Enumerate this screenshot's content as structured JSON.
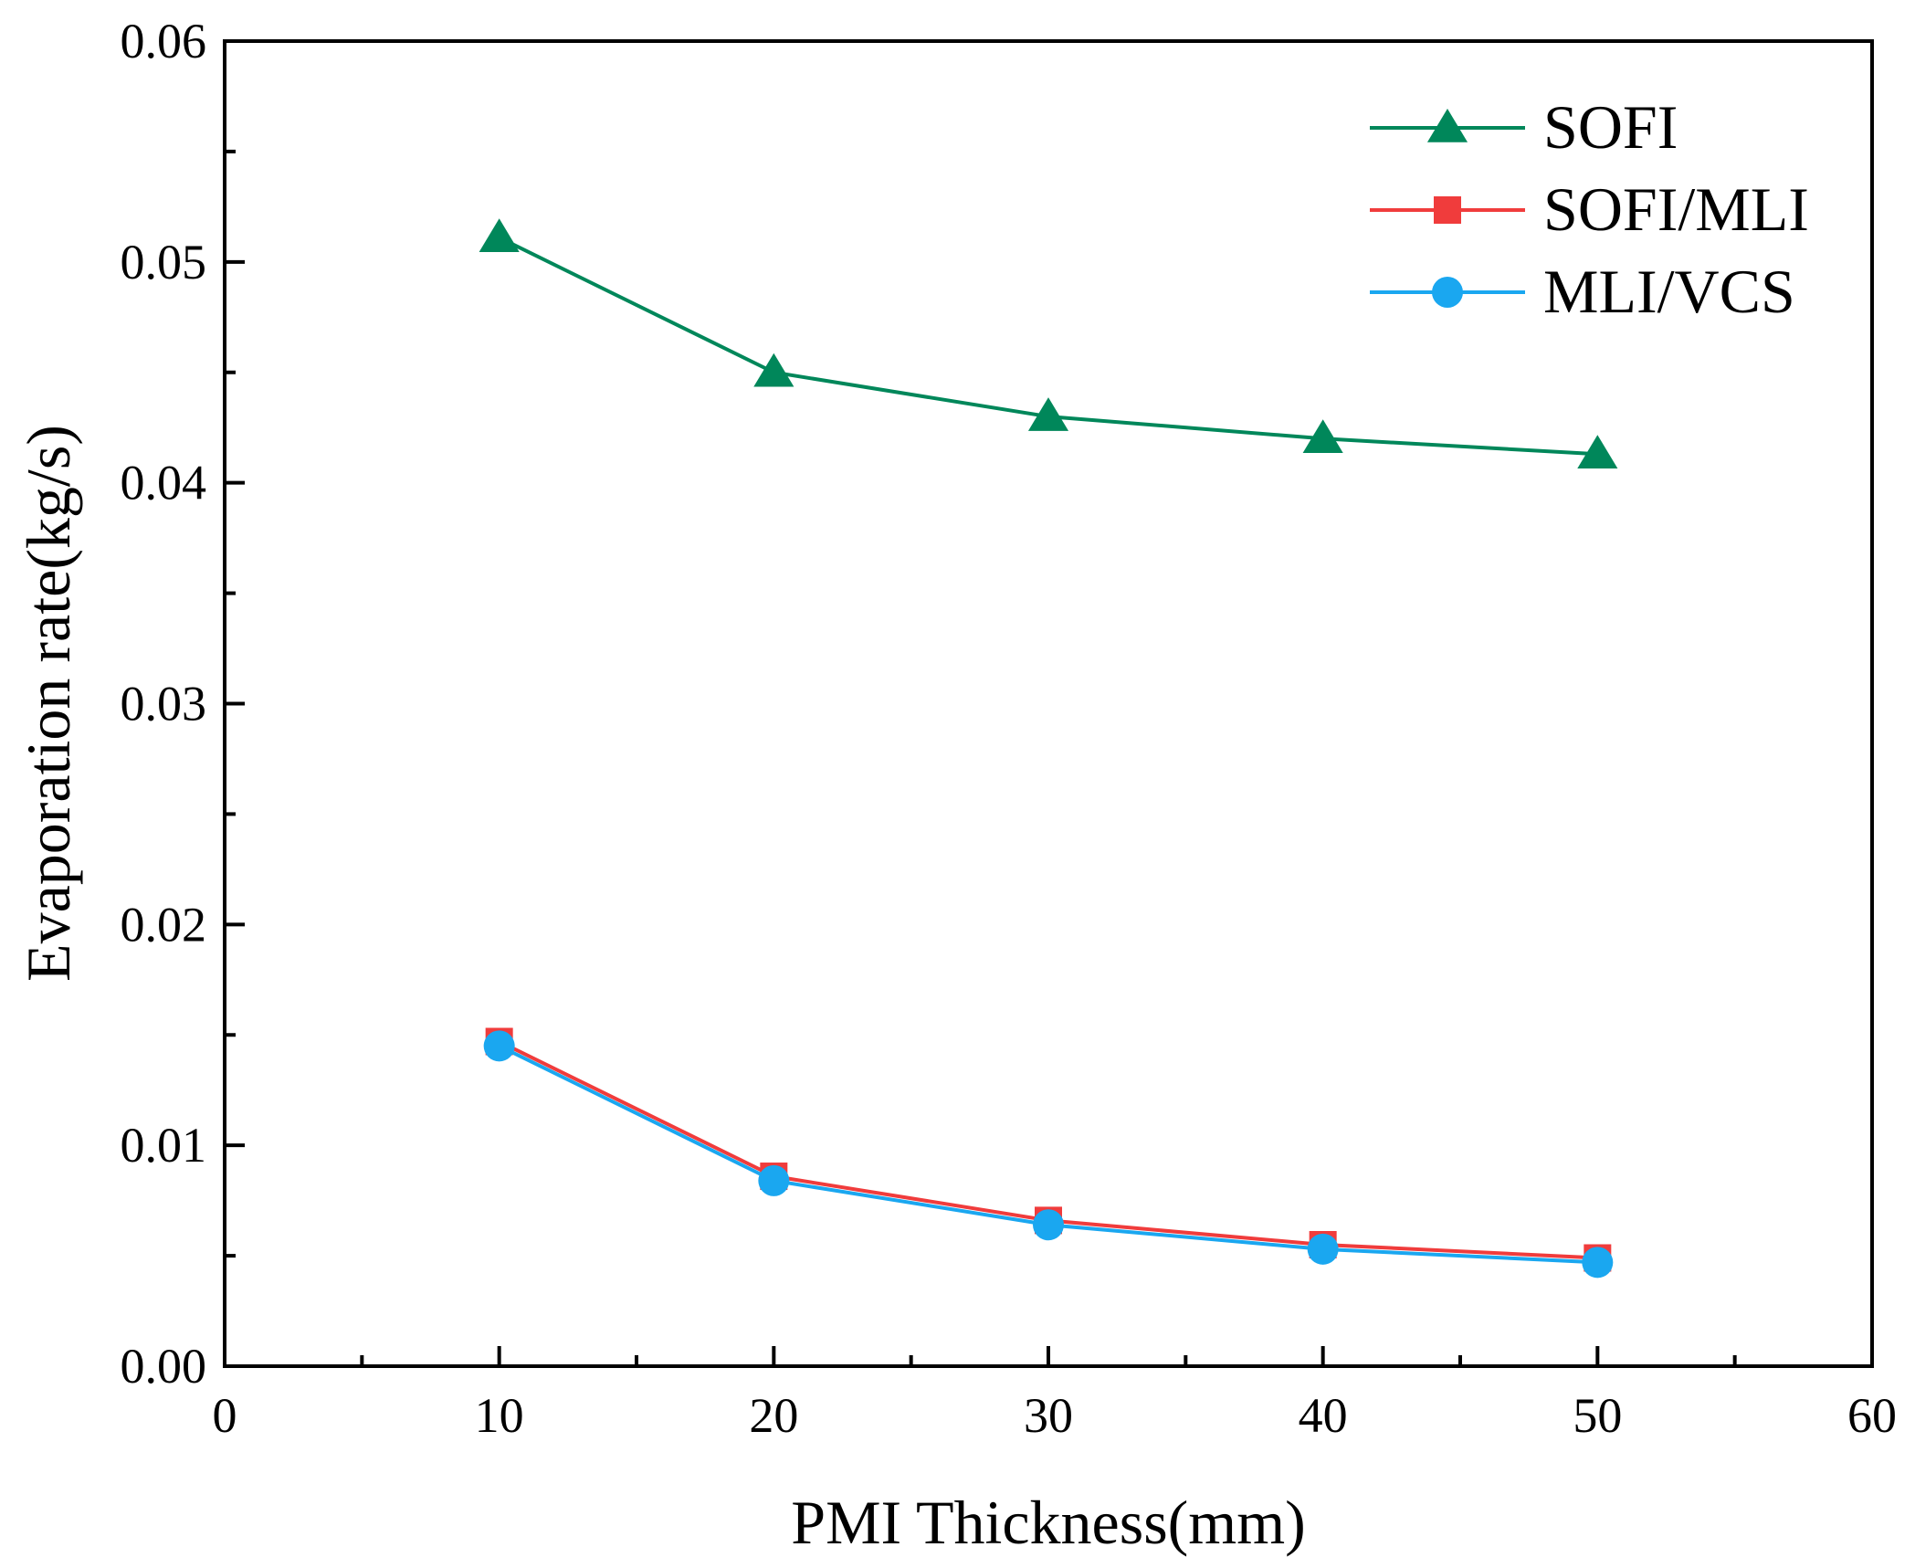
{
  "chart_data": {
    "type": "line",
    "xlabel": "PMI Thickness(mm)",
    "ylabel": "Evaporation rate(kg/s)",
    "xlim": [
      0,
      60
    ],
    "ylim": [
      0,
      0.06
    ],
    "x_major_ticks": [
      0,
      10,
      20,
      30,
      40,
      50,
      60
    ],
    "x_tick_labels": [
      "0",
      "10",
      "20",
      "30",
      "40",
      "50",
      "60"
    ],
    "y_major_ticks": [
      0,
      0.01,
      0.02,
      0.03,
      0.04,
      0.05,
      0.06
    ],
    "y_tick_labels": [
      "0.00",
      "0.01",
      "0.02",
      "0.03",
      "0.04",
      "0.05",
      "0.06"
    ],
    "grid": false,
    "legend_position": "top-right",
    "x": [
      10,
      20,
      30,
      40,
      50
    ],
    "series": [
      {
        "name": "SOFI",
        "marker": "triangle",
        "color": "#00875a",
        "values": [
          0.0511,
          0.045,
          0.043,
          0.042,
          0.0413
        ]
      },
      {
        "name": "SOFI/MLI",
        "marker": "square",
        "color": "#f03c3c",
        "values": [
          0.0147,
          0.0086,
          0.0066,
          0.0055,
          0.0049
        ]
      },
      {
        "name": "MLI/VCS",
        "marker": "circle",
        "color": "#1aa7f0",
        "values": [
          0.0145,
          0.0084,
          0.0064,
          0.0053,
          0.0047
        ]
      }
    ]
  }
}
